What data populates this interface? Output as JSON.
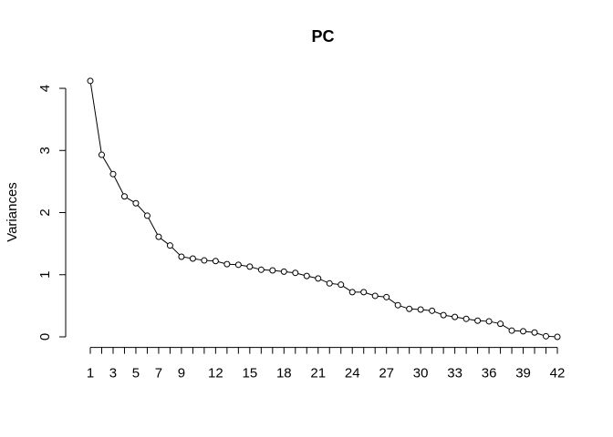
{
  "chart_data": {
    "type": "line",
    "title": "PC",
    "y_label": "Variances",
    "categories": [
      1,
      null,
      3,
      null,
      5,
      null,
      7,
      null,
      9,
      null,
      null,
      12,
      null,
      null,
      15,
      null,
      null,
      18,
      null,
      null,
      21,
      null,
      null,
      24,
      null,
      null,
      27,
      null,
      null,
      30,
      null,
      null,
      33,
      null,
      null,
      36,
      null,
      null,
      39,
      null,
      null,
      42
    ],
    "values": [
      4.12,
      2.93,
      2.62,
      2.26,
      2.15,
      1.95,
      1.61,
      1.47,
      1.29,
      1.26,
      1.23,
      1.22,
      1.17,
      1.16,
      1.13,
      1.08,
      1.07,
      1.05,
      1.03,
      0.98,
      0.94,
      0.86,
      0.84,
      0.72,
      0.72,
      0.66,
      0.64,
      0.51,
      0.45,
      0.44,
      0.42,
      0.35,
      0.32,
      0.29,
      0.26,
      0.25,
      0.21,
      0.1,
      0.09,
      0.07,
      0.01,
      0.0
    ],
    "color": "#000000",
    "ylim": [
      -0.17,
      4.27
    ],
    "yticks": [
      0,
      1,
      2,
      3,
      4
    ],
    "grid": false
  }
}
